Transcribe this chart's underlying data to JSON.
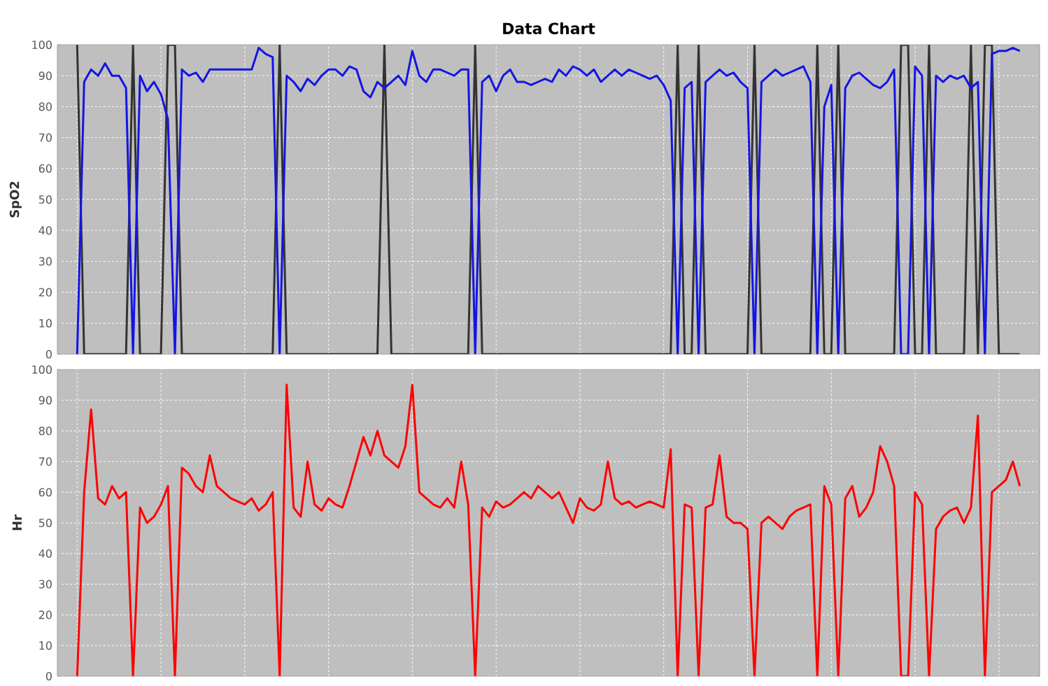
{
  "chart_data": [
    {
      "type": "line",
      "title": "Data Chart",
      "ylabel": "SpO2",
      "ylim": [
        0,
        100
      ],
      "yticks": [
        0,
        10,
        20,
        30,
        40,
        50,
        60,
        70,
        80,
        90,
        100
      ],
      "grid": true,
      "tick_labels": "y",
      "marker": "none",
      "line_style": "solid",
      "categories": [
        null,
        null,
        null,
        null,
        null,
        null,
        null,
        null,
        null,
        null,
        null,
        null,
        null,
        null,
        null,
        null,
        null,
        null,
        null,
        null,
        null,
        null,
        null,
        null,
        null,
        null,
        null,
        null,
        null,
        null,
        null,
        null,
        null,
        null,
        null,
        null,
        null,
        null,
        null,
        null,
        null,
        null,
        null,
        null,
        null,
        null,
        null,
        null,
        null,
        null,
        null,
        null,
        null,
        null,
        null,
        null,
        null,
        null,
        null,
        null,
        null,
        null,
        null,
        null,
        null,
        null,
        null,
        null,
        null,
        null,
        null,
        null,
        null,
        null,
        null,
        null,
        null,
        null,
        null,
        null,
        null,
        null,
        null,
        null,
        null,
        null,
        null,
        null,
        null,
        null,
        null,
        null,
        null,
        null,
        null,
        null,
        null,
        null,
        null,
        null,
        null,
        null,
        null,
        null,
        null,
        null,
        null,
        null,
        null,
        null,
        null,
        null,
        null,
        null,
        null,
        null,
        null,
        null,
        null,
        null,
        null,
        null,
        null,
        null,
        null,
        null,
        null,
        null,
        null,
        null,
        null,
        null,
        null,
        null,
        null,
        null
      ],
      "series": [
        {
          "color": "#333333",
          "values": [
            100,
            0,
            0,
            0,
            0,
            0,
            0,
            0,
            100,
            0,
            0,
            0,
            0,
            100,
            100,
            0,
            0,
            0,
            0,
            0,
            0,
            0,
            0,
            0,
            0,
            0,
            0,
            0,
            0,
            100,
            0,
            0,
            0,
            0,
            0,
            0,
            0,
            0,
            0,
            0,
            0,
            0,
            0,
            0,
            100,
            0,
            0,
            0,
            0,
            0,
            0,
            0,
            0,
            0,
            0,
            0,
            0,
            100,
            0,
            0,
            0,
            0,
            0,
            0,
            0,
            0,
            0,
            0,
            0,
            0,
            0,
            0,
            0,
            0,
            0,
            0,
            0,
            0,
            0,
            0,
            0,
            0,
            0,
            0,
            0,
            0,
            100,
            0,
            0,
            100,
            0,
            0,
            0,
            0,
            0,
            0,
            0,
            100,
            0,
            0,
            0,
            0,
            0,
            0,
            0,
            0,
            100,
            0,
            0,
            100,
            0,
            0,
            0,
            0,
            0,
            0,
            0,
            0,
            100,
            100,
            0,
            0,
            100,
            0,
            0,
            0,
            0,
            0,
            100,
            0,
            100,
            100,
            0,
            0,
            0,
            0
          ]
        },
        {
          "color": "#1414e6",
          "values": [
            0,
            88,
            92,
            90,
            94,
            90,
            90,
            86,
            0,
            90,
            85,
            88,
            84,
            76,
            0,
            92,
            90,
            91,
            88,
            92,
            92,
            92,
            92,
            92,
            92,
            92,
            99,
            97,
            96,
            0,
            90,
            88,
            85,
            89,
            87,
            90,
            92,
            92,
            90,
            93,
            92,
            85,
            83,
            88,
            86,
            88,
            90,
            87,
            98,
            90,
            88,
            92,
            92,
            91,
            90,
            92,
            92,
            0,
            88,
            90,
            85,
            90,
            92,
            88,
            88,
            87,
            88,
            89,
            88,
            92,
            90,
            93,
            92,
            90,
            92,
            88,
            90,
            92,
            90,
            92,
            91,
            90,
            89,
            90,
            87,
            82,
            0,
            86,
            88,
            0,
            88,
            90,
            92,
            90,
            91,
            88,
            86,
            0,
            88,
            90,
            92,
            90,
            91,
            92,
            93,
            88,
            0,
            80,
            87,
            0,
            86,
            90,
            91,
            89,
            87,
            86,
            88,
            92,
            0,
            0,
            93,
            90,
            0,
            90,
            88,
            90,
            89,
            90,
            86,
            88,
            0,
            97,
            98,
            98,
            99,
            98
          ]
        }
      ]
    },
    {
      "type": "line",
      "ylabel": "Hr",
      "ylim": [
        0,
        100
      ],
      "yticks": [
        0,
        10,
        20,
        30,
        40,
        50,
        60,
        70,
        80,
        90,
        100
      ],
      "grid": true,
      "tick_labels": "y",
      "marker": "none",
      "line_style": "solid",
      "categories": [
        null,
        null,
        null,
        null,
        null,
        null,
        null,
        null,
        null,
        null,
        null,
        null,
        null,
        null,
        null,
        null,
        null,
        null,
        null,
        null,
        null,
        null,
        null,
        null,
        null,
        null,
        null,
        null,
        null,
        null,
        null,
        null,
        null,
        null,
        null,
        null,
        null,
        null,
        null,
        null,
        null,
        null,
        null,
        null,
        null,
        null,
        null,
        null,
        null,
        null,
        null,
        null,
        null,
        null,
        null,
        null,
        null,
        null,
        null,
        null,
        null,
        null,
        null,
        null,
        null,
        null,
        null,
        null,
        null,
        null,
        null,
        null,
        null,
        null,
        null,
        null,
        null,
        null,
        null,
        null,
        null,
        null,
        null,
        null,
        null,
        null,
        null,
        null,
        null,
        null,
        null,
        null,
        null,
        null,
        null,
        null,
        null,
        null,
        null,
        null,
        null,
        null,
        null,
        null,
        null,
        null,
        null,
        null,
        null,
        null,
        null,
        null,
        null,
        null,
        null,
        null,
        null,
        null,
        null,
        null,
        null,
        null,
        null,
        null,
        null,
        null,
        null,
        null,
        null,
        null,
        null,
        null,
        null,
        null,
        null,
        null
      ],
      "series": [
        {
          "color": "#ff0000",
          "values": [
            0,
            60,
            87,
            58,
            56,
            62,
            58,
            60,
            0,
            55,
            50,
            52,
            56,
            62,
            0,
            68,
            66,
            62,
            60,
            72,
            62,
            60,
            58,
            57,
            56,
            58,
            54,
            56,
            60,
            0,
            95,
            55,
            52,
            70,
            56,
            54,
            58,
            56,
            55,
            62,
            70,
            78,
            72,
            80,
            72,
            70,
            68,
            75,
            95,
            60,
            58,
            56,
            55,
            58,
            55,
            70,
            56,
            0,
            55,
            52,
            57,
            55,
            56,
            58,
            60,
            58,
            62,
            60,
            58,
            60,
            55,
            50,
            58,
            55,
            54,
            56,
            70,
            58,
            56,
            57,
            55,
            56,
            57,
            56,
            55,
            74,
            0,
            56,
            55,
            0,
            55,
            56,
            72,
            52,
            50,
            50,
            48,
            0,
            50,
            52,
            50,
            48,
            52,
            54,
            55,
            56,
            0,
            62,
            56,
            0,
            58,
            62,
            52,
            55,
            60,
            75,
            70,
            62,
            0,
            0,
            60,
            56,
            0,
            48,
            52,
            54,
            55,
            50,
            55,
            85,
            0,
            60,
            62,
            64,
            70,
            62
          ]
        }
      ]
    }
  ]
}
